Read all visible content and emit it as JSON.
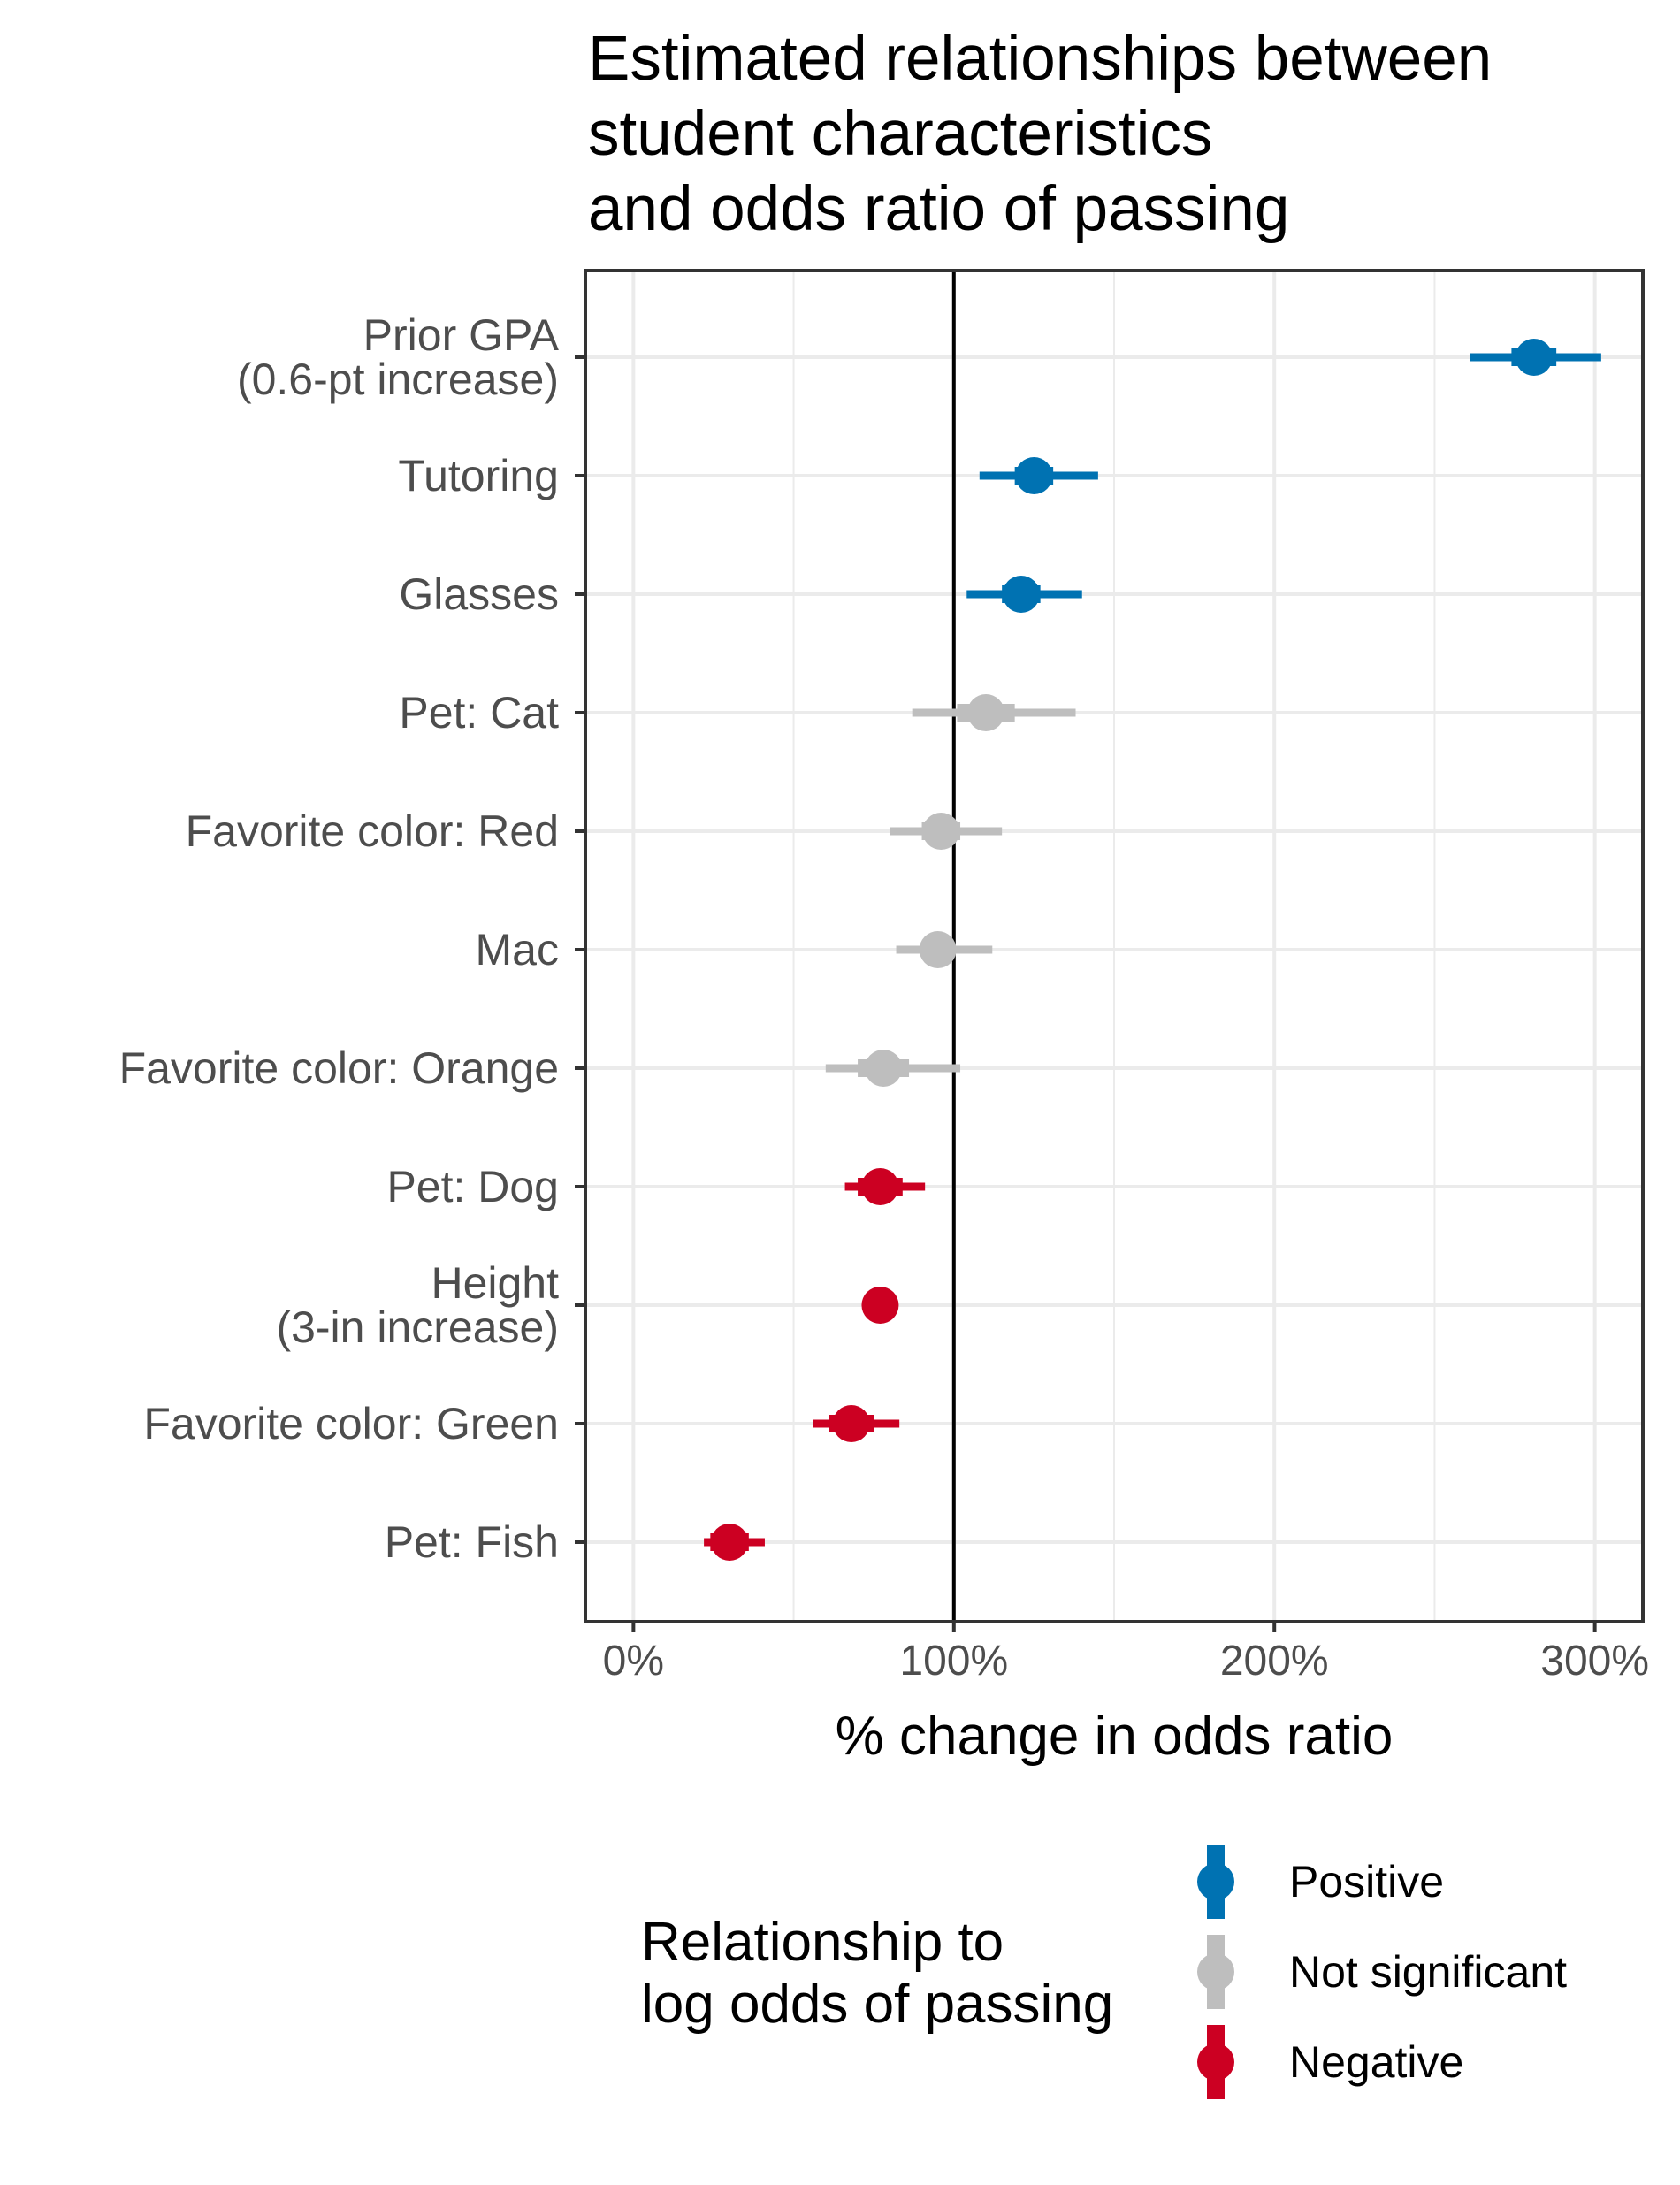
{
  "chart_data": {
    "type": "scatter",
    "subtype": "point-range (coefficient plot)",
    "title_lines": [
      "Estimated relationships between",
      "student characteristics",
      "and odds ratio of passing"
    ],
    "xlabel": "% change in odds ratio",
    "ylabel": "",
    "xlim": [
      -15,
      315
    ],
    "x_ticks": [
      0,
      100,
      200,
      300
    ],
    "x_tick_labels": [
      "0%",
      "100%",
      "200%",
      "300%"
    ],
    "reference_line": 100,
    "grid": true,
    "legend": {
      "title_lines": [
        "Relationship to",
        "log odds of passing"
      ],
      "placement": "bottom",
      "entries": [
        {
          "label": "Positive",
          "color": "#0072B2"
        },
        {
          "label": "Not significant",
          "color": "#BEBEBE"
        },
        {
          "label": "Negative",
          "color": "#CC0022"
        }
      ]
    },
    "rows": [
      {
        "label_lines": [
          "Prior GPA",
          "(0.6-pt increase)"
        ],
        "estimate": 281,
        "inner": [
          274,
          288
        ],
        "outer": [
          261,
          302
        ],
        "group": 0
      },
      {
        "label_lines": [
          "Tutoring"
        ],
        "estimate": 125,
        "inner": [
          119,
          131
        ],
        "outer": [
          108,
          145
        ],
        "group": 0
      },
      {
        "label_lines": [
          "Glasses"
        ],
        "estimate": 121,
        "inner": [
          115,
          127
        ],
        "outer": [
          104,
          140
        ],
        "group": 0
      },
      {
        "label_lines": [
          "Pet: Cat"
        ],
        "estimate": 110,
        "inner": [
          101,
          119
        ],
        "outer": [
          87,
          138
        ],
        "group": 1
      },
      {
        "label_lines": [
          "Favorite color: Red"
        ],
        "estimate": 96,
        "inner": [
          90,
          102
        ],
        "outer": [
          80,
          115
        ],
        "group": 1
      },
      {
        "label_lines": [
          "Mac"
        ],
        "estimate": 95,
        "inner": [
          90,
          100
        ],
        "outer": [
          82,
          112
        ],
        "group": 1
      },
      {
        "label_lines": [
          "Favorite color: Orange"
        ],
        "estimate": 78,
        "inner": [
          70,
          86
        ],
        "outer": [
          60,
          102
        ],
        "group": 1
      },
      {
        "label_lines": [
          "Pet: Dog"
        ],
        "estimate": 77,
        "inner": [
          70,
          84
        ],
        "outer": [
          66,
          91
        ],
        "group": 2
      },
      {
        "label_lines": [
          "Height",
          "(3-in increase)"
        ],
        "estimate": 77,
        "inner": [
          75,
          79
        ],
        "outer": [
          74,
          80
        ],
        "group": 2
      },
      {
        "label_lines": [
          "Favorite color: Green"
        ],
        "estimate": 68,
        "inner": [
          61,
          75
        ],
        "outer": [
          56,
          83
        ],
        "group": 2
      },
      {
        "label_lines": [
          "Pet: Fish"
        ],
        "estimate": 30,
        "inner": [
          24,
          36
        ],
        "outer": [
          22,
          41
        ],
        "group": 2
      }
    ]
  }
}
